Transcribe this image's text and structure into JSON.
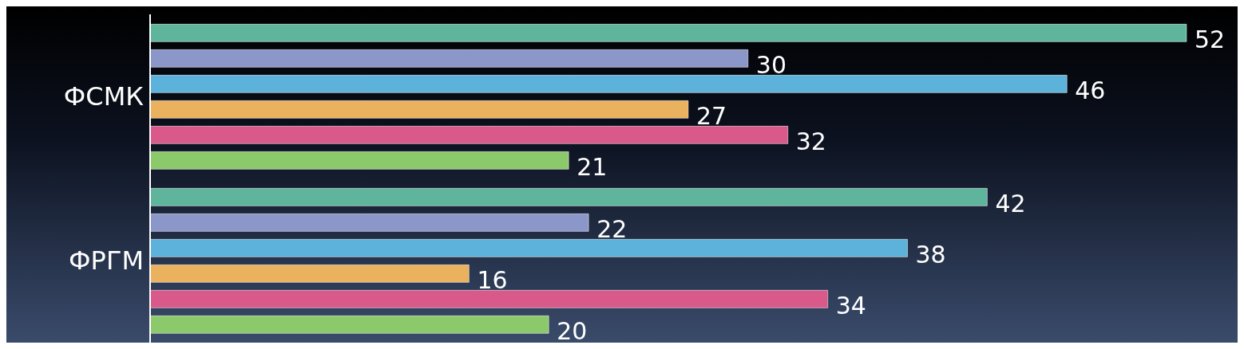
{
  "chart_data": {
    "type": "bar",
    "orientation": "horizontal",
    "categories": [
      "ФСМК",
      "ФРГМ"
    ],
    "data_labels": true,
    "series": [
      {
        "color": "#5fb59c",
        "values": [
          52,
          42
        ]
      },
      {
        "color": "#8b96c9",
        "values": [
          30,
          22
        ]
      },
      {
        "color": "#5cb2da",
        "values": [
          46,
          38
        ]
      },
      {
        "color": "#eab15e",
        "values": [
          27,
          16
        ]
      },
      {
        "color": "#d9598a",
        "values": [
          32,
          34
        ]
      },
      {
        "color": "#8cc96b",
        "values": [
          21,
          20
        ]
      }
    ]
  }
}
